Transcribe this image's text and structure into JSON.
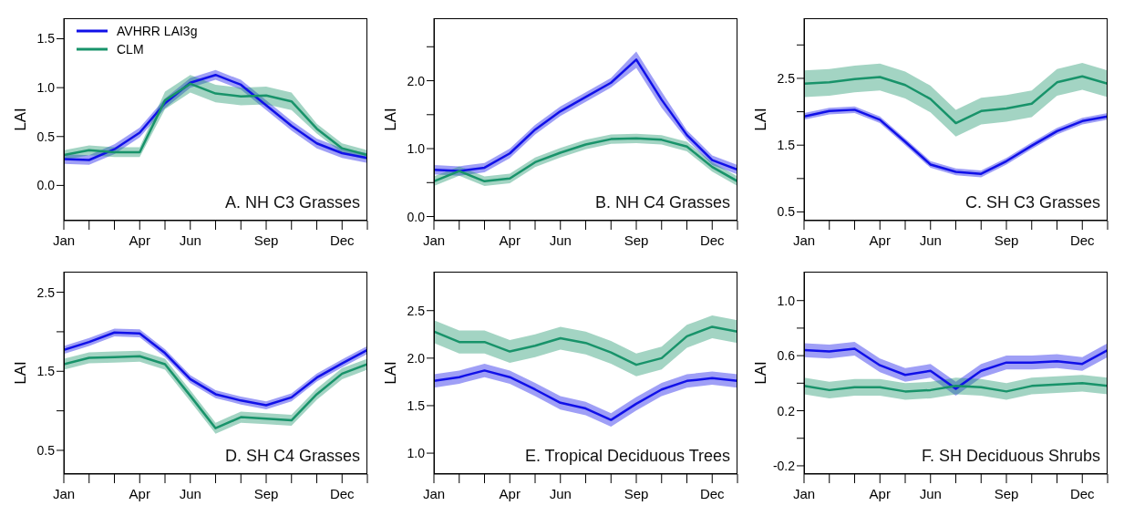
{
  "chart_data": [
    {
      "type": "line",
      "title": "A. NH C3 Grasses",
      "ylabel": "LAI",
      "categories": [
        "Jan",
        null,
        null,
        "Apr",
        null,
        "Jun",
        null,
        null,
        "Sep",
        null,
        null,
        "Dec",
        null
      ],
      "ylim": [
        -0.36,
        1.71
      ],
      "yticks": [
        {
          "value": 0,
          "label": "0.0"
        },
        0.5,
        {
          "value": 1,
          "label": "1.0"
        },
        1.5
      ],
      "legend": "top left",
      "series": [
        {
          "name": "AVHRR LAI3g",
          "color": "#1010e8",
          "values": [
            0.27,
            0.26,
            0.37,
            0.54,
            0.84,
            1.05,
            1.13,
            1.03,
            0.82,
            0.61,
            0.43,
            0.33,
            0.28
          ],
          "lower": [
            0.22,
            0.21,
            0.32,
            0.49,
            0.79,
            1.0,
            1.08,
            0.98,
            0.77,
            0.56,
            0.38,
            0.28,
            0.23
          ],
          "upper": [
            0.32,
            0.31,
            0.42,
            0.59,
            0.89,
            1.1,
            1.18,
            1.08,
            0.87,
            0.66,
            0.48,
            0.38,
            0.33
          ]
        },
        {
          "name": "CLM",
          "color": "#18936a",
          "values": [
            0.31,
            0.36,
            0.34,
            0.34,
            0.87,
            1.04,
            0.94,
            0.91,
            0.92,
            0.86,
            0.58,
            0.38,
            0.31
          ],
          "lower": [
            0.26,
            0.31,
            0.29,
            0.29,
            0.78,
            0.95,
            0.85,
            0.82,
            0.83,
            0.77,
            0.53,
            0.33,
            0.26
          ],
          "upper": [
            0.36,
            0.41,
            0.39,
            0.39,
            0.96,
            1.13,
            1.03,
            1.0,
            1.01,
            0.95,
            0.63,
            0.43,
            0.36
          ]
        }
      ]
    },
    {
      "type": "line",
      "title": "B. NH C4 Grasses",
      "ylabel": "LAI",
      "categories": [
        "Jan",
        null,
        null,
        "Apr",
        null,
        "Jun",
        null,
        null,
        "Sep",
        null,
        null,
        "Dec",
        null
      ],
      "ylim": [
        -0.06,
        2.92
      ],
      "yticks": [
        {
          "value": 0,
          "label": "0.0"
        },
        {
          "value": 0.5,
          "label": null
        },
        {
          "value": 1,
          "label": "1.0"
        },
        {
          "value": 1.5,
          "label": null
        },
        {
          "value": 2,
          "label": "2.0"
        },
        {
          "value": 2.5,
          "label": null
        }
      ],
      "series": [
        {
          "color": "#1010e8",
          "values": [
            0.69,
            0.67,
            0.72,
            0.93,
            1.28,
            1.55,
            1.76,
            1.97,
            2.31,
            1.72,
            1.2,
            0.83,
            0.69
          ],
          "lower": [
            0.62,
            0.6,
            0.65,
            0.86,
            1.21,
            1.48,
            1.69,
            1.9,
            2.19,
            1.6,
            1.13,
            0.76,
            0.62
          ],
          "upper": [
            0.76,
            0.74,
            0.79,
            1.0,
            1.35,
            1.62,
            1.83,
            2.04,
            2.43,
            1.84,
            1.27,
            0.9,
            0.76
          ]
        },
        {
          "color": "#18936a",
          "values": [
            0.52,
            0.67,
            0.52,
            0.56,
            0.8,
            0.94,
            1.06,
            1.14,
            1.15,
            1.13,
            1.03,
            0.73,
            0.52
          ],
          "lower": [
            0.45,
            0.6,
            0.45,
            0.49,
            0.73,
            0.87,
            0.99,
            1.07,
            1.08,
            1.06,
            0.96,
            0.66,
            0.45
          ],
          "upper": [
            0.59,
            0.74,
            0.59,
            0.63,
            0.87,
            1.01,
            1.13,
            1.21,
            1.22,
            1.2,
            1.1,
            0.8,
            0.59
          ]
        }
      ]
    },
    {
      "type": "line",
      "title": "C. SH C3 Grasses",
      "ylabel": "LAI",
      "categories": [
        "Jan",
        null,
        null,
        "Apr",
        null,
        "Jun",
        null,
        null,
        "Sep",
        null,
        null,
        "Dec",
        null
      ],
      "ylim": [
        0.37,
        3.4
      ],
      "yticks": [
        0.5,
        {
          "value": 1,
          "label": null
        },
        1.5,
        {
          "value": 2,
          "label": null
        },
        2.5,
        {
          "value": 3,
          "label": null
        }
      ],
      "series": [
        {
          "color": "#1010e8",
          "values": [
            1.93,
            2.01,
            2.03,
            1.88,
            1.55,
            1.21,
            1.1,
            1.07,
            1.26,
            1.49,
            1.71,
            1.86,
            1.93
          ],
          "lower": [
            1.88,
            1.96,
            1.98,
            1.83,
            1.5,
            1.16,
            1.05,
            1.02,
            1.21,
            1.44,
            1.66,
            1.81,
            1.88
          ],
          "upper": [
            1.98,
            2.06,
            2.08,
            1.93,
            1.6,
            1.26,
            1.15,
            1.12,
            1.31,
            1.54,
            1.76,
            1.91,
            1.98
          ]
        },
        {
          "color": "#18936a",
          "values": [
            2.42,
            2.44,
            2.49,
            2.52,
            2.4,
            2.19,
            1.83,
            2.01,
            2.05,
            2.12,
            2.44,
            2.53,
            2.42
          ],
          "lower": [
            2.22,
            2.24,
            2.29,
            2.32,
            2.2,
            1.99,
            1.63,
            1.81,
            1.85,
            1.92,
            2.24,
            2.33,
            2.22
          ],
          "upper": [
            2.62,
            2.64,
            2.69,
            2.72,
            2.6,
            2.39,
            2.03,
            2.21,
            2.25,
            2.32,
            2.64,
            2.73,
            2.62
          ]
        }
      ]
    },
    {
      "type": "line",
      "title": "D. SH C4 Grasses",
      "ylabel": "LAI",
      "categories": [
        "Jan",
        null,
        null,
        "Apr",
        null,
        "Jun",
        null,
        null,
        "Sep",
        null,
        null,
        "Dec",
        null
      ],
      "ylim": [
        0.2,
        2.76
      ],
      "yticks": [
        0.5,
        {
          "value": 1,
          "label": null
        },
        1.5,
        {
          "value": 2,
          "label": null
        },
        2.5
      ],
      "series": [
        {
          "color": "#1010e8",
          "values": [
            1.77,
            1.87,
            1.99,
            1.98,
            1.73,
            1.4,
            1.21,
            1.13,
            1.07,
            1.17,
            1.42,
            1.6,
            1.77
          ],
          "lower": [
            1.72,
            1.82,
            1.94,
            1.93,
            1.68,
            1.35,
            1.16,
            1.08,
            1.02,
            1.12,
            1.37,
            1.55,
            1.72
          ],
          "upper": [
            1.82,
            1.92,
            2.04,
            2.03,
            1.78,
            1.45,
            1.26,
            1.18,
            1.12,
            1.22,
            1.47,
            1.65,
            1.82
          ]
        },
        {
          "color": "#18936a",
          "values": [
            1.59,
            1.67,
            1.68,
            1.69,
            1.59,
            1.19,
            0.78,
            0.92,
            0.9,
            0.88,
            1.21,
            1.47,
            1.59
          ],
          "lower": [
            1.52,
            1.6,
            1.61,
            1.62,
            1.52,
            1.12,
            0.71,
            0.85,
            0.83,
            0.81,
            1.14,
            1.4,
            1.52
          ],
          "upper": [
            1.66,
            1.74,
            1.75,
            1.76,
            1.66,
            1.26,
            0.85,
            0.99,
            0.97,
            0.95,
            1.28,
            1.54,
            1.66
          ]
        }
      ]
    },
    {
      "type": "line",
      "title": "E. Tropical Deciduous Trees",
      "ylabel": "LAI",
      "categories": [
        "Jan",
        null,
        null,
        "Apr",
        null,
        "Jun",
        null,
        null,
        "Sep",
        null,
        null,
        "Dec",
        null
      ],
      "ylim": [
        0.78,
        2.91
      ],
      "yticks": [
        {
          "value": 1,
          "label": "1.0"
        },
        1.5,
        {
          "value": 2,
          "label": "2.0"
        },
        2.5
      ],
      "series": [
        {
          "color": "#1010e8",
          "values": [
            1.76,
            1.8,
            1.87,
            1.8,
            1.67,
            1.53,
            1.47,
            1.35,
            1.52,
            1.67,
            1.76,
            1.79,
            1.76
          ],
          "lower": [
            1.69,
            1.73,
            1.8,
            1.73,
            1.6,
            1.46,
            1.4,
            1.28,
            1.45,
            1.6,
            1.69,
            1.72,
            1.69
          ],
          "upper": [
            1.83,
            1.87,
            1.94,
            1.87,
            1.74,
            1.6,
            1.54,
            1.42,
            1.59,
            1.74,
            1.83,
            1.86,
            1.83
          ]
        },
        {
          "color": "#18936a",
          "values": [
            2.28,
            2.17,
            2.17,
            2.07,
            2.13,
            2.21,
            2.16,
            2.06,
            1.93,
            2.0,
            2.23,
            2.33,
            2.28
          ],
          "lower": [
            2.16,
            2.05,
            2.05,
            1.95,
            2.01,
            2.09,
            2.04,
            1.94,
            1.81,
            1.88,
            2.11,
            2.21,
            2.16
          ],
          "upper": [
            2.4,
            2.29,
            2.29,
            2.19,
            2.25,
            2.33,
            2.28,
            2.18,
            2.05,
            2.12,
            2.35,
            2.45,
            2.4
          ]
        }
      ]
    },
    {
      "type": "line",
      "title": "F. SH Deciduous Shrubs",
      "ylabel": "LAI",
      "categories": [
        "Jan",
        null,
        null,
        "Apr",
        null,
        "Jun",
        null,
        null,
        "Sep",
        null,
        null,
        "Dec",
        null
      ],
      "ylim": [
        -0.26,
        1.21
      ],
      "yticks": [
        -0.2,
        {
          "value": 0,
          "label": null
        },
        0.2,
        {
          "value": 0.4,
          "label": null
        },
        0.6,
        {
          "value": 0.8,
          "label": null
        },
        {
          "value": 1,
          "label": "1.0"
        }
      ],
      "series": [
        {
          "color": "#1010e8",
          "values": [
            0.64,
            0.63,
            0.65,
            0.53,
            0.46,
            0.49,
            0.36,
            0.49,
            0.55,
            0.55,
            0.56,
            0.54,
            0.64
          ],
          "lower": [
            0.59,
            0.58,
            0.6,
            0.48,
            0.41,
            0.44,
            0.31,
            0.44,
            0.5,
            0.5,
            0.51,
            0.49,
            0.59
          ],
          "upper": [
            0.69,
            0.68,
            0.7,
            0.58,
            0.51,
            0.54,
            0.41,
            0.54,
            0.6,
            0.6,
            0.61,
            0.59,
            0.69
          ]
        },
        {
          "color": "#18936a",
          "values": [
            0.38,
            0.35,
            0.37,
            0.37,
            0.34,
            0.35,
            0.38,
            0.37,
            0.34,
            0.38,
            0.39,
            0.4,
            0.38
          ],
          "lower": [
            0.32,
            0.29,
            0.31,
            0.31,
            0.28,
            0.29,
            0.32,
            0.31,
            0.28,
            0.32,
            0.33,
            0.34,
            0.32
          ],
          "upper": [
            0.44,
            0.41,
            0.43,
            0.43,
            0.4,
            0.41,
            0.44,
            0.43,
            0.4,
            0.44,
            0.45,
            0.46,
            0.44
          ]
        }
      ]
    }
  ]
}
